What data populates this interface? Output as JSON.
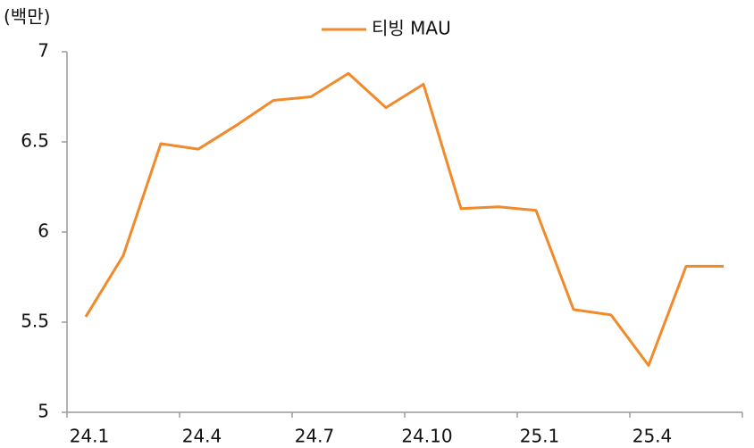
{
  "chart_data": {
    "type": "line",
    "y_label": "(백만)",
    "categories": [
      "24.1",
      null,
      null,
      "24.4",
      null,
      null,
      "24.7",
      null,
      null,
      "24.10",
      null,
      null,
      "25.1",
      null,
      null,
      "25.4",
      null,
      null
    ],
    "series": [
      {
        "name": "티빙 MAU",
        "color": "#f08a2a",
        "values": [
          5.53,
          5.87,
          6.49,
          6.46,
          6.59,
          6.73,
          6.75,
          6.88,
          6.69,
          6.82,
          6.13,
          6.14,
          6.12,
          5.57,
          5.54,
          5.26,
          5.81,
          5.81
        ]
      }
    ],
    "ylim": [
      5,
      7
    ],
    "yticks": [
      5,
      5.5,
      6,
      6.5,
      7
    ],
    "grid": false,
    "legend": "top"
  }
}
